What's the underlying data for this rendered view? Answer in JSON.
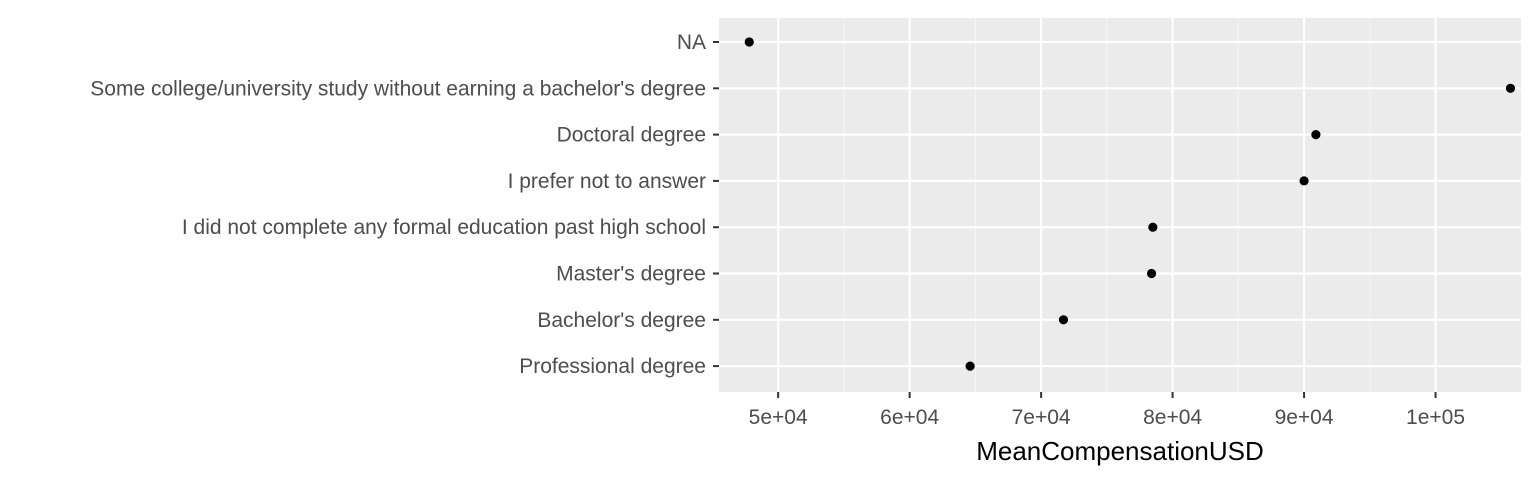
{
  "chart_data": {
    "type": "scatter",
    "title": "",
    "xlabel": "MeanCompensationUSD",
    "ylabel": "",
    "xlim": [
      45500,
      106500
    ],
    "x_ticks": [
      50000,
      60000,
      70000,
      80000,
      90000,
      100000
    ],
    "x_tick_labels": [
      "5e+04",
      "6e+04",
      "7e+04",
      "8e+04",
      "9e+04",
      "1e+05"
    ],
    "categories": [
      "NA",
      "Some college/university study without earning a bachelor's degree",
      "Doctoral degree",
      "I prefer not to answer",
      "I did not complete any formal education past high school",
      "Master's degree",
      "Bachelor's degree",
      "Professional degree"
    ],
    "values": [
      47800,
      105700,
      90900,
      90000,
      78500,
      78400,
      71700,
      64600
    ],
    "grid": true,
    "legend": "none",
    "colors": {
      "panel_background": "#ebebeb",
      "grid_major": "#ffffff",
      "grid_minor": "#f5f5f5",
      "point": "#000000",
      "tick_text": "#4d4d4d",
      "tick_mark": "#333333"
    }
  }
}
